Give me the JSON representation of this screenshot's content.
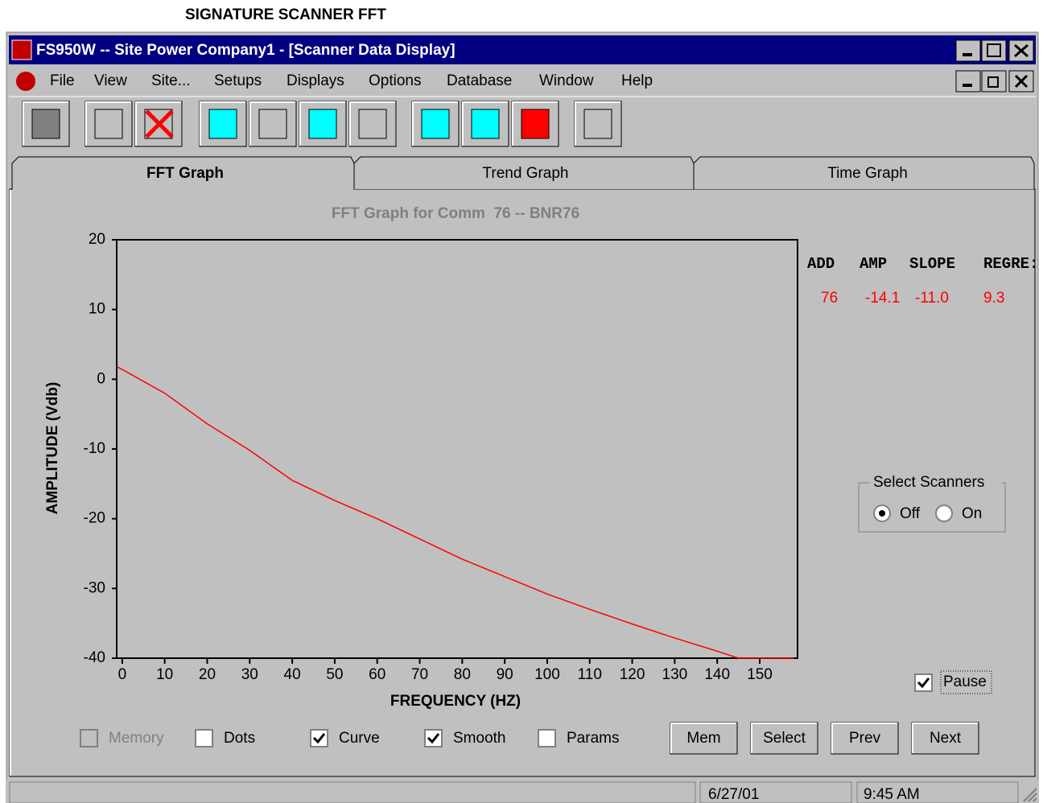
{
  "header": {
    "caption": "SIGNATURE SCANNER FFT"
  },
  "window": {
    "title": "FS950W -- Site Power Company1 - [Scanner Data Display]"
  },
  "menu": [
    "File",
    "View",
    "Site...",
    "Setups",
    "Displays",
    "Options",
    "Database",
    "Window",
    "Help"
  ],
  "tabs": [
    "FFT Graph",
    "Trend Graph",
    "Time Graph"
  ],
  "chart_data": {
    "type": "line",
    "title": "FFT Graph for Comm  76 -- BNR76",
    "x_label": "FREQUENCY (HZ)",
    "y_label": "AMPLITUDE (Vdb)",
    "x": [
      -1.3,
      0,
      10,
      20,
      30,
      40,
      50,
      60,
      70,
      80,
      90,
      100,
      110,
      120,
      130,
      140,
      145,
      155,
      158
    ],
    "values": [
      1.8,
      1.4,
      -2,
      -6.4,
      -10.2,
      -14.5,
      -17.4,
      -20,
      -22.9,
      -25.8,
      -28.3,
      -30.8,
      -33,
      -35.1,
      -37.1,
      -39,
      -40,
      -40,
      -40
    ],
    "color": "#ff0000",
    "xlim": [
      -1.3,
      158.9
    ],
    "ylim": [
      -40,
      20
    ],
    "xticks": [
      0,
      10,
      20,
      30,
      40,
      50,
      60,
      70,
      80,
      90,
      100,
      110,
      120,
      130,
      140,
      150
    ],
    "yticks": [
      -40,
      -30,
      -20,
      -10,
      0,
      10,
      20
    ]
  },
  "params": {
    "headers": [
      "ADD",
      "AMP",
      "SLOPE",
      "REGRE:"
    ],
    "values": [
      "76",
      "-14.1",
      "-11.0",
      "9.3"
    ]
  },
  "scanners": {
    "label": "Select Scanners",
    "options": [
      {
        "label": "Off",
        "selected": true
      },
      {
        "label": "On",
        "selected": false
      }
    ]
  },
  "pause": {
    "label": "Pause",
    "checked": true
  },
  "options": [
    {
      "label": "Memory",
      "checked": false,
      "enabled": false
    },
    {
      "label": "Dots",
      "checked": false,
      "enabled": true
    },
    {
      "label": "Curve",
      "checked": true,
      "enabled": true
    },
    {
      "label": "Smooth",
      "checked": true,
      "enabled": true
    },
    {
      "label": "Params",
      "checked": false,
      "enabled": true
    }
  ],
  "buttons": [
    "Mem",
    "Select",
    "Prev",
    "Next"
  ],
  "status": {
    "date": "6/27/01",
    "time": "9:45 AM"
  }
}
